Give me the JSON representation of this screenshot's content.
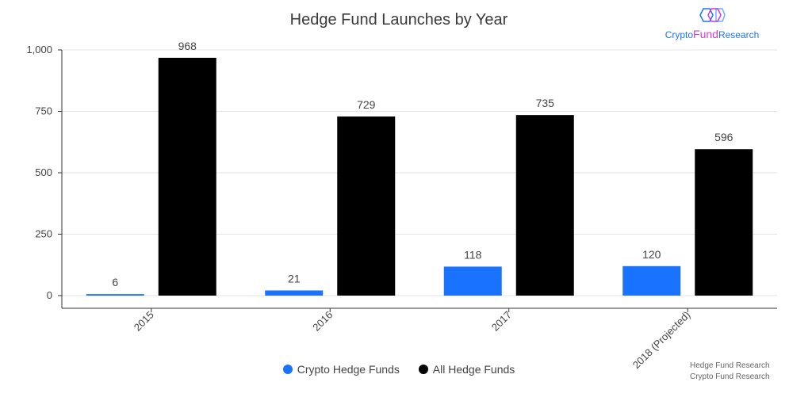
{
  "chart_data": {
    "type": "bar",
    "title": "Hedge Fund Launches by Year",
    "categories": [
      "2015",
      "2016",
      "2017",
      "2018 (Projected)"
    ],
    "series": [
      {
        "name": "Crypto Hedge Funds",
        "values": [
          6,
          21,
          118,
          120
        ],
        "color": "#1a73ff"
      },
      {
        "name": "All Hedge Funds",
        "values": [
          968,
          729,
          735,
          596
        ],
        "color": "#000000"
      }
    ],
    "yticks": [
      "0",
      "250",
      "500",
      "750",
      "1,000"
    ],
    "ylim": [
      0,
      1000
    ],
    "xlabel": "",
    "ylabel": "",
    "grid": true,
    "legend_position": "bottom"
  },
  "logo": {
    "part1": "Crypto",
    "part2": "Fund",
    "part3": "Research"
  },
  "sources": [
    "Hedge Fund Research",
    "Crypto Fund Research"
  ]
}
